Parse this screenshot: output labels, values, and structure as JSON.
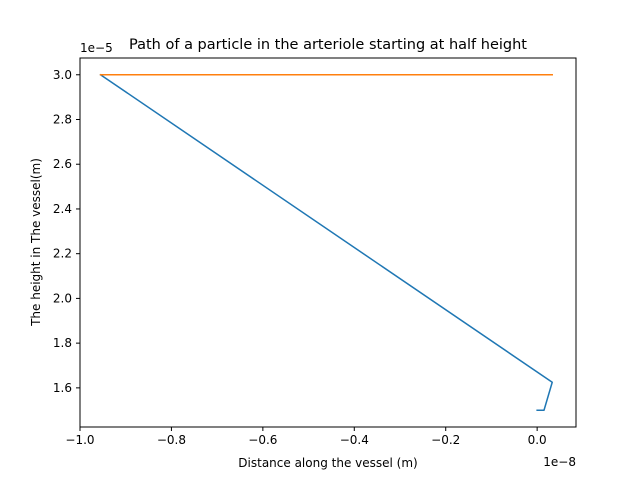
{
  "chart_data": {
    "type": "line",
    "title": "Path of a particle in the arteriole starting at half height",
    "xlabel": "Distance along the vessel (m)",
    "ylabel": "The height in The vessel(m)",
    "x_offset_label": "1e−8",
    "y_offset_label": "1e−5",
    "xlim": [
      -1.0,
      0.085
    ],
    "ylim": [
      1.425,
      3.075
    ],
    "x_ticks": [
      -1.0,
      -0.8,
      -0.6,
      -0.4,
      -0.2,
      0.0
    ],
    "x_tick_labels": [
      "−1.0",
      "−0.8",
      "−0.6",
      "−0.4",
      "−0.2",
      "0.0"
    ],
    "y_ticks": [
      1.6,
      1.8,
      2.0,
      2.2,
      2.4,
      2.6,
      2.8,
      3.0
    ],
    "y_tick_labels": [
      "1.6",
      "1.8",
      "2.0",
      "2.2",
      "2.4",
      "2.6",
      "2.8",
      "3.0"
    ],
    "grid": false,
    "legend": "none",
    "series": [
      {
        "color": "#1f77b4",
        "x": [
          0.0,
          0.015,
          0.033,
          -0.955
        ],
        "y": [
          1.5,
          1.5,
          1.625,
          3.0
        ]
      },
      {
        "color": "#ff7f0e",
        "x": [
          -0.955,
          0.033
        ],
        "y": [
          3.0,
          3.0
        ]
      }
    ]
  }
}
